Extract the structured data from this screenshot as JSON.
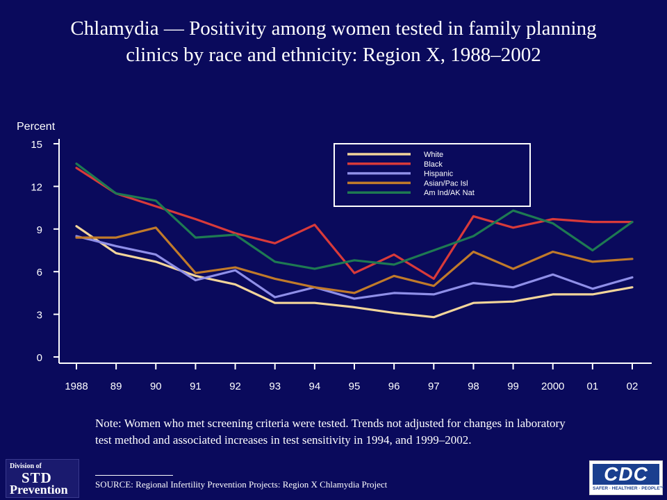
{
  "title": {
    "line1": "Chlamydia — Positivity among women tested in family planning",
    "line2": "clinics by race and ethnicity: Region X, 1988–2002"
  },
  "chart_data": {
    "type": "line",
    "ylabel": "Percent",
    "xlabel": "",
    "ylim": [
      0,
      15
    ],
    "yticks": [
      0,
      3,
      6,
      9,
      12,
      15
    ],
    "categories": [
      "1988",
      "89",
      "90",
      "91",
      "92",
      "93",
      "94",
      "95",
      "96",
      "97",
      "98",
      "99",
      "2000",
      "01",
      "02"
    ],
    "legend_position": "top-right",
    "series": [
      {
        "name": "White",
        "color": "#f2d59a",
        "values": [
          9.2,
          7.3,
          6.7,
          5.7,
          5.1,
          3.8,
          3.8,
          3.5,
          3.1,
          2.8,
          3.8,
          3.9,
          4.4,
          4.4,
          4.9
        ]
      },
      {
        "name": "Black",
        "color": "#d83a3a",
        "values": [
          13.3,
          11.5,
          10.6,
          9.7,
          8.7,
          8.0,
          9.3,
          5.9,
          7.2,
          5.5,
          9.9,
          9.1,
          9.7,
          9.5,
          9.5
        ]
      },
      {
        "name": "Hispanic",
        "color": "#8f8fe8",
        "values": [
          8.5,
          7.8,
          7.2,
          5.4,
          6.1,
          4.2,
          4.9,
          4.1,
          4.5,
          4.4,
          5.2,
          4.9,
          5.8,
          4.8,
          5.6
        ]
      },
      {
        "name": "Asian/Pac Isl",
        "color": "#c07a2a",
        "values": [
          8.4,
          8.4,
          9.1,
          5.9,
          6.3,
          5.5,
          4.9,
          4.5,
          5.7,
          5.0,
          7.4,
          6.2,
          7.4,
          6.7,
          6.9
        ]
      },
      {
        "name": "Am Ind/AK Nat",
        "color": "#1e7a52",
        "values": [
          13.6,
          11.5,
          11.0,
          8.4,
          8.6,
          6.7,
          6.2,
          6.8,
          6.5,
          7.5,
          8.5,
          10.3,
          9.4,
          7.5,
          9.5
        ]
      }
    ]
  },
  "note": "Note: Women who met screening criteria were tested. Trends not adjusted for changes in laboratory test method and associated increases in test sensitivity in 1994, and 1999–2002.",
  "source": "SOURCE: Regional Infertility Prevention Projects: Region X Chlamydia Project",
  "logos": {
    "std": {
      "line1": "Division of",
      "line2": "STD",
      "line3": "Prevention"
    },
    "cdc": {
      "mark": "CDC",
      "tagline": "SAFER · HEALTHIER · PEOPLE™"
    }
  }
}
